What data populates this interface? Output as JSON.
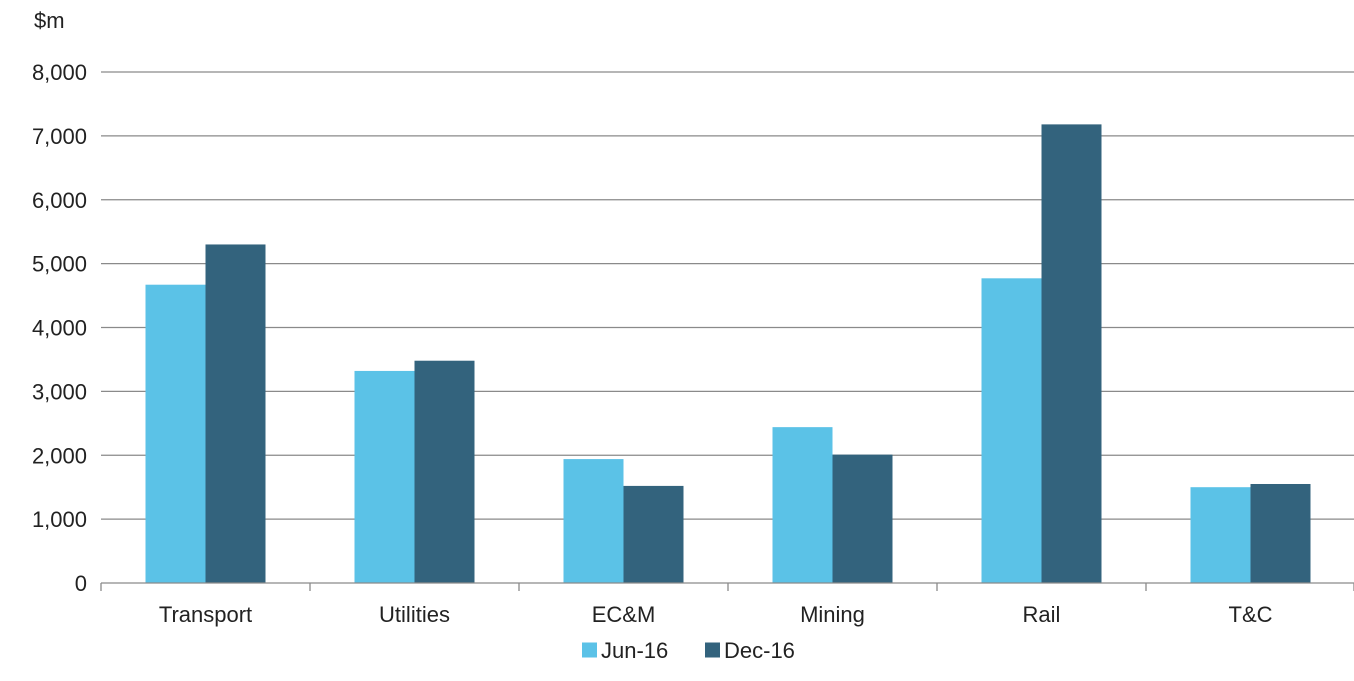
{
  "chart_data": {
    "type": "bar",
    "ylabel": "$m",
    "ylim": [
      0,
      8000
    ],
    "yticks": [
      0,
      1000,
      2000,
      3000,
      4000,
      5000,
      6000,
      7000,
      8000
    ],
    "ytick_labels": [
      "0",
      "1,000",
      "2,000",
      "3,000",
      "4,000",
      "5,000",
      "6,000",
      "7,000",
      "8,000"
    ],
    "categories": [
      "Transport",
      "Utilities",
      "EC&M",
      "Mining",
      "Rail",
      "T&C"
    ],
    "series": [
      {
        "name": "Jun-16",
        "color": "#5bc2e7",
        "values": [
          4670,
          3320,
          1940,
          2440,
          4770,
          1500
        ]
      },
      {
        "name": "Dec-16",
        "color": "#33637d",
        "values": [
          5300,
          3480,
          1520,
          2010,
          7180,
          1550
        ]
      }
    ],
    "grid": true,
    "legend": "bottom-center"
  }
}
